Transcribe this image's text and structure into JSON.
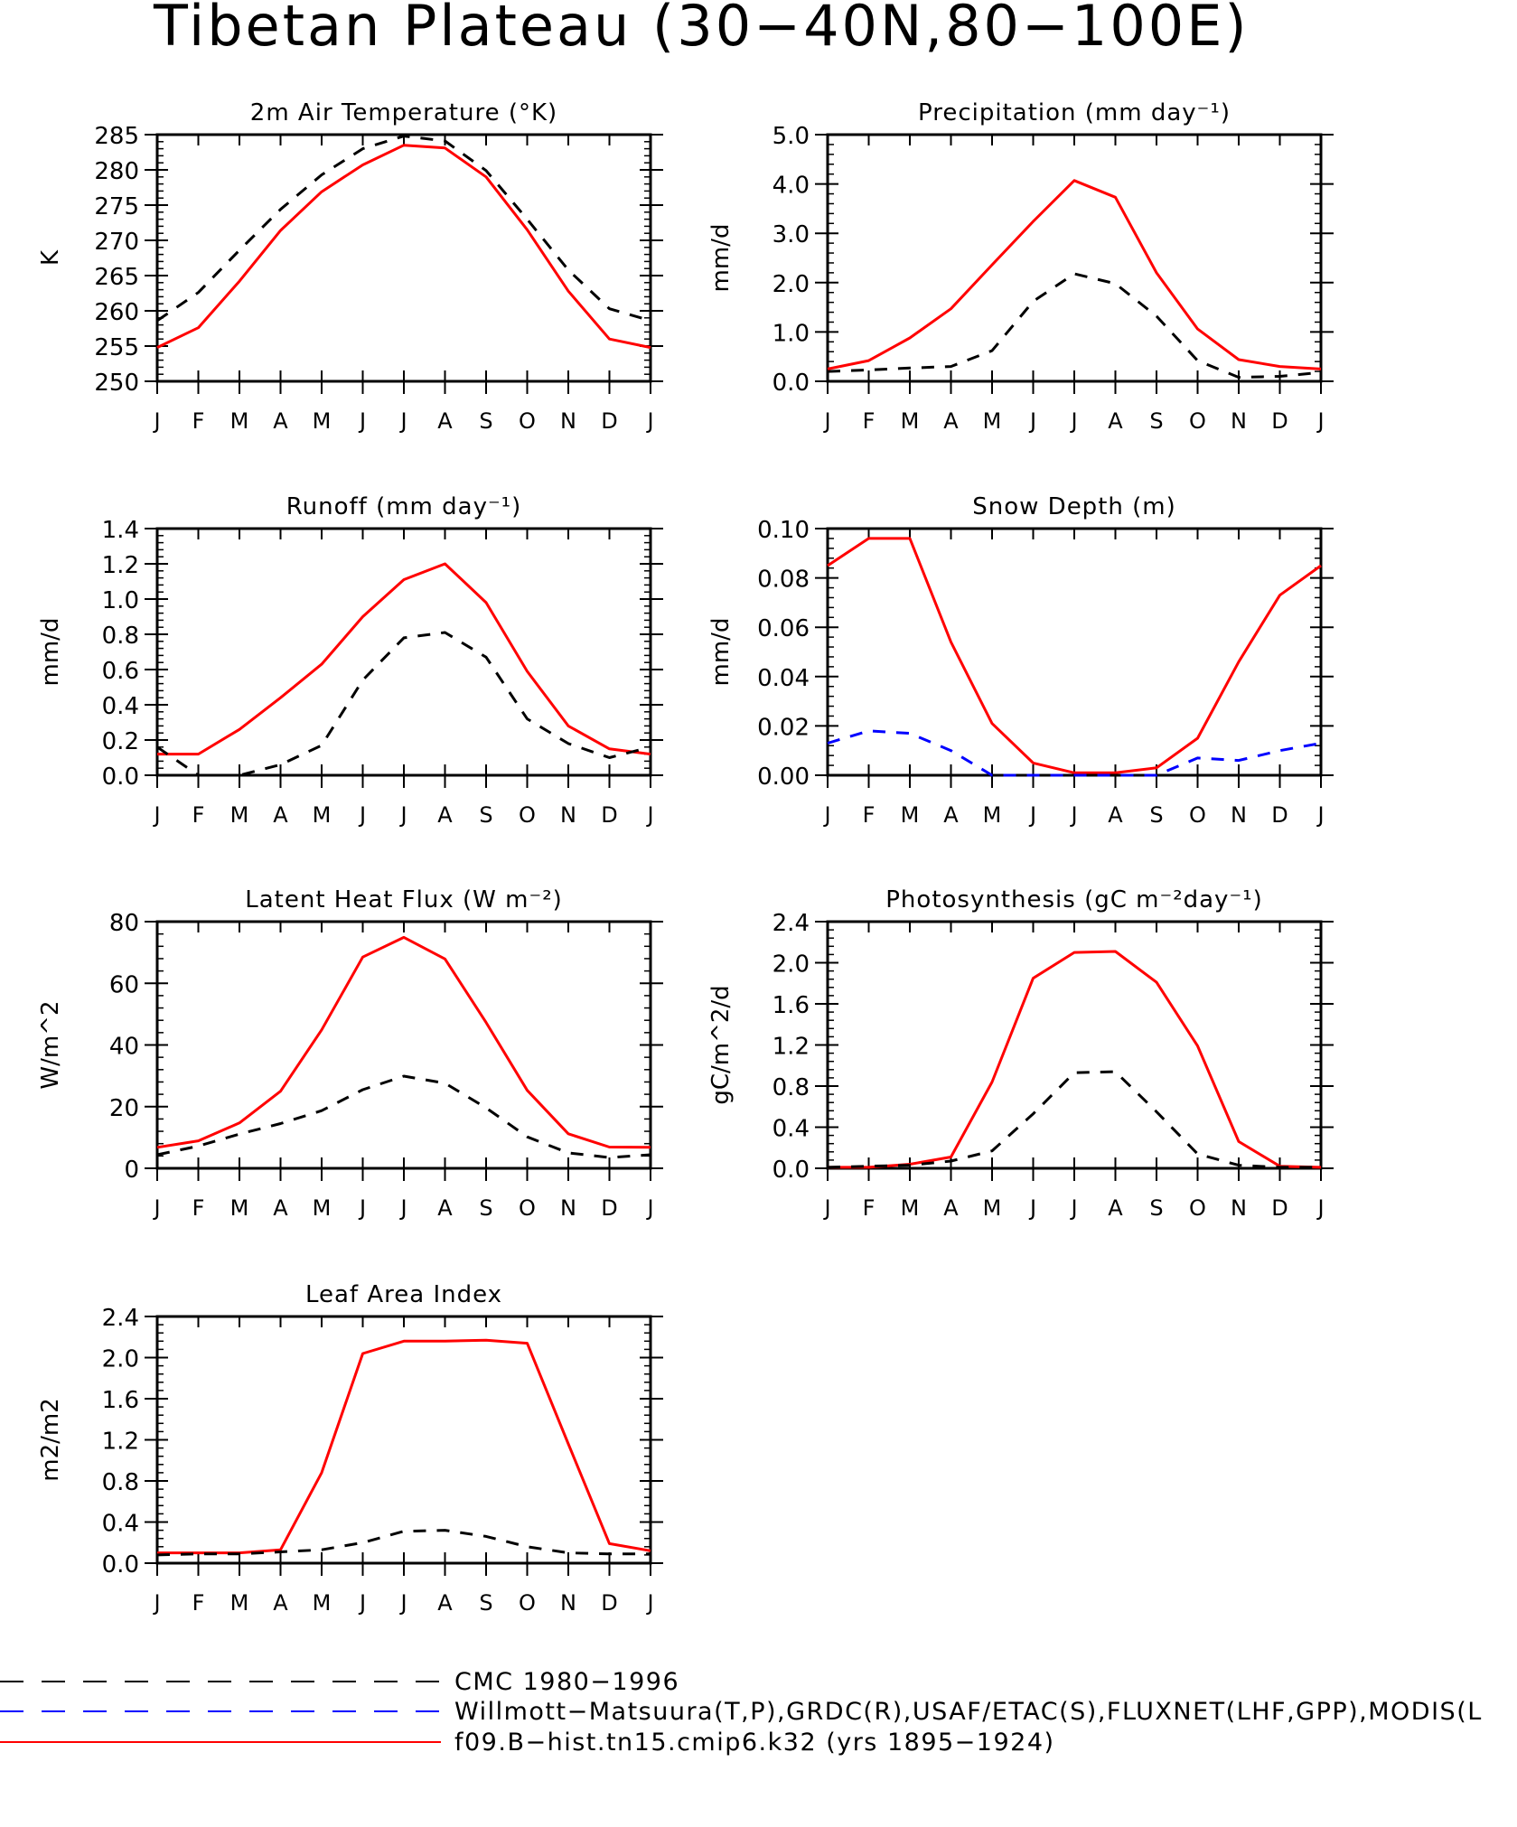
{
  "title": "Tibetan Plateau (30−40N,80−100E)",
  "colors": {
    "cmc": "#000000",
    "obs": "#0000ff",
    "model": "#ff0000"
  },
  "legend": [
    {
      "key": "cmc",
      "label": "CMC 1980−1996",
      "color": "#000000",
      "dash": "dashed"
    },
    {
      "key": "obs",
      "label": "Willmott−Matsuura(T,P),GRDC(R),USAF/ETAC(S),FLUXNET(LHF,GPP),MODIS(L",
      "color": "#0000ff",
      "dash": "dashed"
    },
    {
      "key": "model",
      "label": "f09.B−hist.tn15.cmip6.k32 (yrs 1895−1924)",
      "color": "#ff0000",
      "dash": "solid"
    }
  ],
  "chart_data": [
    {
      "type": "line",
      "title": "2m Air Temperature (°K)",
      "ylabel": "K",
      "categories": [
        "J",
        "F",
        "M",
        "A",
        "M",
        "J",
        "J",
        "A",
        "S",
        "O",
        "N",
        "D",
        "J"
      ],
      "ylim": [
        250,
        285
      ],
      "yticks": [
        "250",
        "255",
        "260",
        "265",
        "270",
        "275",
        "280",
        "285"
      ],
      "series": [
        {
          "key": "model",
          "values": [
            254.8,
            257.6,
            264.2,
            271.4,
            276.9,
            280.7,
            283.5,
            283.1,
            279.0,
            271.5,
            262.8,
            256.0,
            254.8
          ]
        },
        {
          "key": "cmc",
          "values": [
            258.6,
            262.6,
            268.6,
            274.4,
            279.3,
            283.0,
            284.8,
            284.1,
            279.9,
            273.0,
            265.8,
            260.3,
            258.6
          ]
        }
      ]
    },
    {
      "type": "line",
      "title": "Precipitation (mm day⁻¹)",
      "ylabel": "mm/d",
      "categories": [
        "J",
        "F",
        "M",
        "A",
        "M",
        "J",
        "J",
        "A",
        "S",
        "O",
        "N",
        "D",
        "J"
      ],
      "ylim": [
        0,
        5
      ],
      "yticks": [
        "0.0",
        "1.0",
        "2.0",
        "3.0",
        "4.0",
        "5.0"
      ],
      "series": [
        {
          "key": "model",
          "values": [
            0.25,
            0.42,
            0.88,
            1.47,
            2.36,
            3.24,
            4.07,
            3.73,
            2.2,
            1.06,
            0.44,
            0.3,
            0.25
          ]
        },
        {
          "key": "cmc",
          "values": [
            0.2,
            0.23,
            0.27,
            0.3,
            0.62,
            1.62,
            2.18,
            1.98,
            1.32,
            0.42,
            0.08,
            0.1,
            0.18
          ]
        }
      ]
    },
    {
      "type": "line",
      "title": "Runoff (mm day⁻¹)",
      "ylabel": "mm/d",
      "categories": [
        "J",
        "F",
        "M",
        "A",
        "M",
        "J",
        "J",
        "A",
        "S",
        "O",
        "N",
        "D",
        "J"
      ],
      "ylim": [
        0,
        1.4
      ],
      "yticks": [
        "0.0",
        "0.2",
        "0.4",
        "0.6",
        "0.8",
        "1.0",
        "1.2",
        "1.4"
      ],
      "series": [
        {
          "key": "model",
          "values": [
            0.12,
            0.12,
            0.26,
            0.44,
            0.63,
            0.9,
            1.11,
            1.2,
            0.98,
            0.59,
            0.28,
            0.15,
            0.12
          ]
        },
        {
          "key": "cmc",
          "values": [
            0.16,
            0.0,
            0.0,
            0.06,
            0.17,
            0.54,
            0.78,
            0.81,
            0.67,
            0.32,
            0.18,
            0.1,
            0.16
          ]
        }
      ]
    },
    {
      "type": "line",
      "title": "Snow Depth (m)",
      "ylabel": "mm/d",
      "categories": [
        "J",
        "F",
        "M",
        "A",
        "M",
        "J",
        "J",
        "A",
        "S",
        "O",
        "N",
        "D",
        "J"
      ],
      "ylim": [
        0,
        0.1
      ],
      "yticks": [
        "0.00",
        "0.02",
        "0.04",
        "0.06",
        "0.08",
        "0.10"
      ],
      "series": [
        {
          "key": "model",
          "values": [
            0.085,
            0.096,
            0.096,
            0.054,
            0.021,
            0.005,
            0.001,
            0.001,
            0.003,
            0.015,
            0.046,
            0.073,
            0.085
          ]
        },
        {
          "key": "cmc",
          "values": [
            0,
            0,
            0,
            0,
            0,
            0,
            0,
            0,
            0,
            0,
            0,
            0,
            0
          ]
        },
        {
          "key": "obs",
          "values": [
            0.013,
            0.018,
            0.017,
            0.01,
            0.0,
            0.0,
            0.0,
            0.0,
            0.0,
            0.007,
            0.006,
            0.01,
            0.013
          ]
        }
      ]
    },
    {
      "type": "line",
      "title": "Latent Heat Flux (W m⁻²)",
      "ylabel": "W/m^2",
      "categories": [
        "J",
        "F",
        "M",
        "A",
        "M",
        "J",
        "J",
        "A",
        "S",
        "O",
        "N",
        "D",
        "J"
      ],
      "ylim": [
        0,
        80
      ],
      "yticks": [
        "0",
        "20",
        "40",
        "60",
        "80"
      ],
      "series": [
        {
          "key": "model",
          "values": [
            6.8,
            8.9,
            14.7,
            25.0,
            44.9,
            68.5,
            74.9,
            67.9,
            47.3,
            25.3,
            11.2,
            6.9,
            6.8
          ]
        },
        {
          "key": "cmc",
          "values": [
            4.4,
            7.2,
            11.1,
            14.5,
            18.7,
            25.5,
            29.9,
            27.6,
            19.6,
            10.2,
            5.0,
            3.5,
            4.4
          ]
        }
      ]
    },
    {
      "type": "line",
      "title": "Photosynthesis (gC m⁻²day⁻¹)",
      "ylabel": "gC/m^2/d",
      "categories": [
        "J",
        "F",
        "M",
        "A",
        "M",
        "J",
        "J",
        "A",
        "S",
        "O",
        "N",
        "D",
        "J"
      ],
      "ylim": [
        0,
        2.4
      ],
      "yticks": [
        "0.0",
        "0.4",
        "0.8",
        "1.2",
        "1.6",
        "2.0",
        "2.4"
      ],
      "series": [
        {
          "key": "model",
          "values": [
            0.01,
            0.01,
            0.04,
            0.11,
            0.84,
            1.85,
            2.1,
            2.11,
            1.81,
            1.19,
            0.26,
            0.02,
            0.01
          ]
        },
        {
          "key": "cmc",
          "values": [
            0.01,
            0.02,
            0.03,
            0.07,
            0.17,
            0.53,
            0.93,
            0.94,
            0.55,
            0.14,
            0.03,
            0.01,
            0.01
          ]
        }
      ]
    },
    {
      "type": "line",
      "title": "Leaf Area Index",
      "ylabel": "m2/m2",
      "categories": [
        "J",
        "F",
        "M",
        "A",
        "M",
        "J",
        "J",
        "A",
        "S",
        "O",
        "N",
        "D",
        "J"
      ],
      "ylim": [
        0,
        2.4
      ],
      "yticks": [
        "0.0",
        "0.4",
        "0.8",
        "1.2",
        "1.6",
        "2.0",
        "2.4"
      ],
      "series": [
        {
          "key": "model",
          "values": [
            0.1,
            0.1,
            0.1,
            0.13,
            0.88,
            2.04,
            2.16,
            2.16,
            2.17,
            2.14,
            1.16,
            0.19,
            0.12
          ]
        },
        {
          "key": "cmc",
          "values": [
            0.08,
            0.09,
            0.09,
            0.11,
            0.13,
            0.2,
            0.31,
            0.32,
            0.26,
            0.16,
            0.1,
            0.09,
            0.09
          ]
        }
      ]
    }
  ]
}
